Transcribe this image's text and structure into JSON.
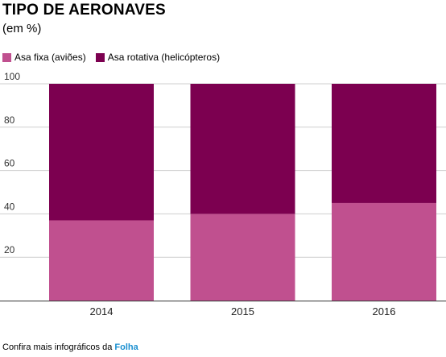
{
  "chart_data": {
    "type": "bar",
    "stacked": true,
    "title": "TIPO DE AERONAVES",
    "subtitle": "(em %)",
    "categories": [
      "2014",
      "2015",
      "2016"
    ],
    "series": [
      {
        "name": "Asa fixa (aviões)",
        "values": [
          37,
          40,
          45
        ],
        "color": "#c0508f"
      },
      {
        "name": "Asa rotativa (helicópteros)",
        "values": [
          63,
          60,
          55
        ],
        "color": "#7c0050"
      }
    ],
    "y_ticks": [
      "100",
      "80",
      "60",
      "40",
      "20"
    ],
    "ylim": [
      0,
      100
    ],
    "grid": true,
    "legend_position": "top-left"
  },
  "footer": {
    "text": "Confira mais infográficos da ",
    "brand": "Folha"
  }
}
